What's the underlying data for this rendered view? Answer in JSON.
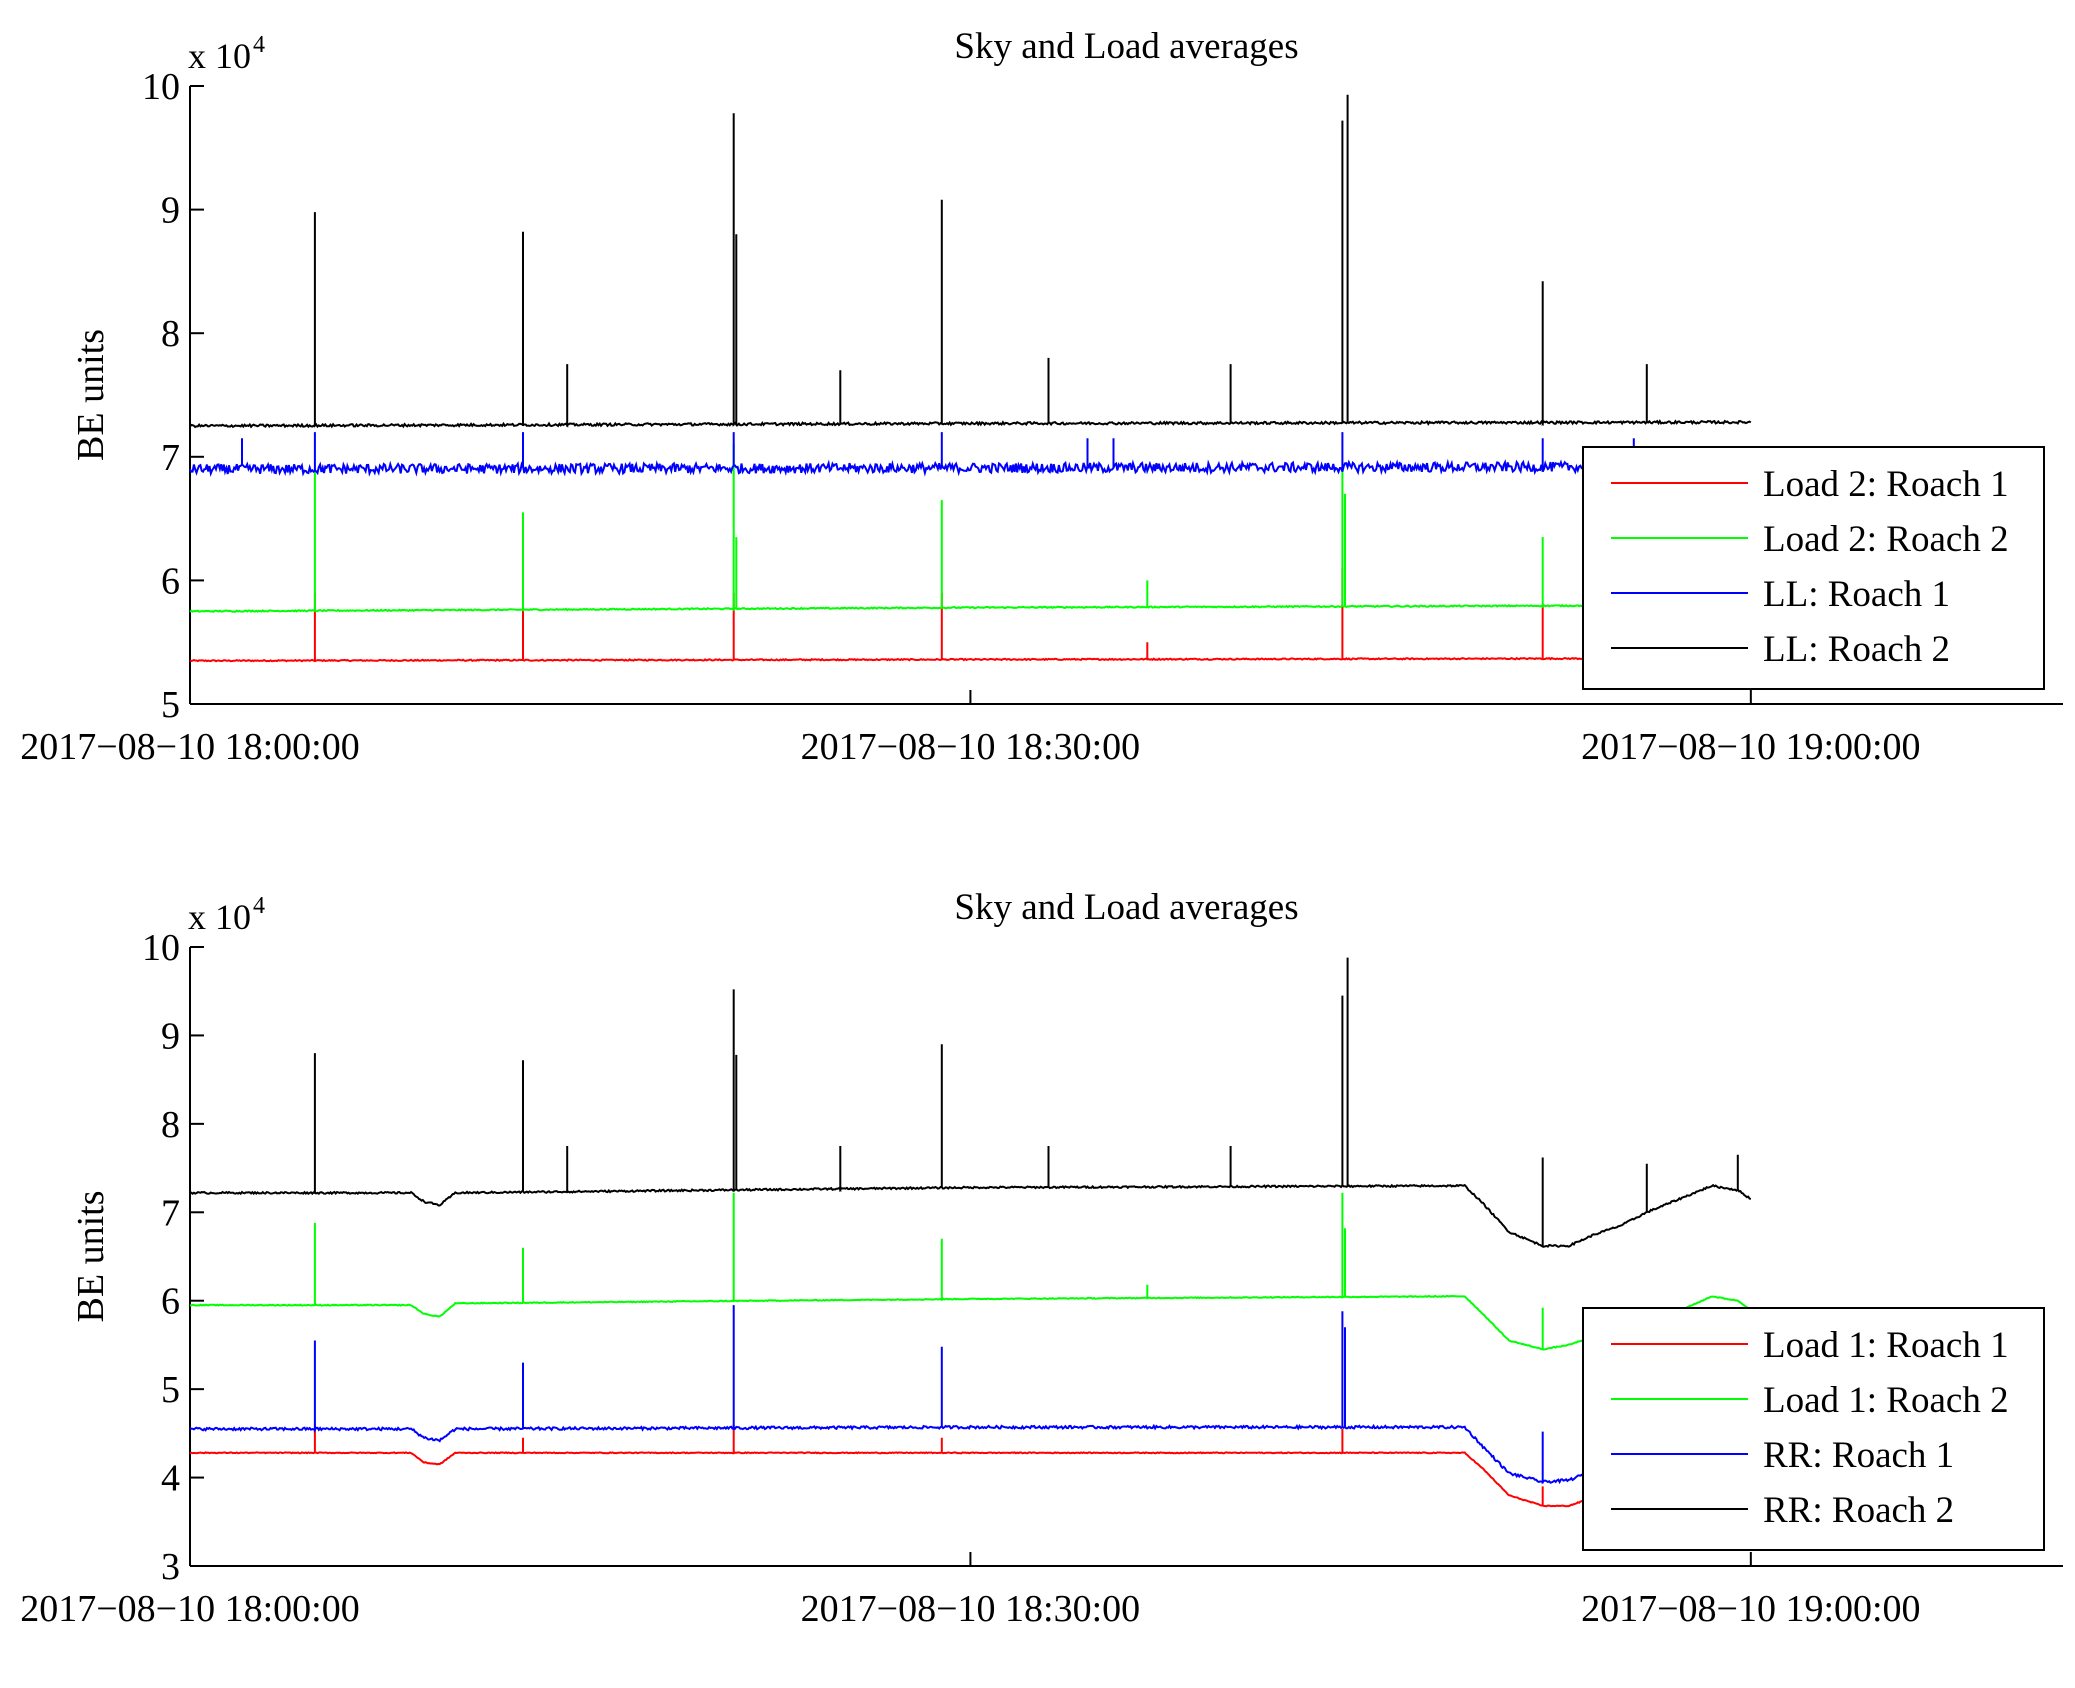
{
  "chart_data": [
    {
      "type": "line",
      "title": "Sky and Load averages",
      "ylabel": "BE units",
      "y_multiplier": "x 10",
      "y_multiplier_exponent": "4",
      "ylim": [
        5,
        10
      ],
      "yticks": [
        5,
        6,
        7,
        8,
        9,
        10
      ],
      "ytick_labels": [
        "5",
        "6",
        "7",
        "8",
        "9",
        "10"
      ],
      "xlim": [
        "2017-08-10 18:00:00",
        "2017-08-10 19:12:00"
      ],
      "xticks": [
        "2017-08-10 18:00:00",
        "2017-08-10 18:30:00",
        "2017-08-10 19:00:00"
      ],
      "xtick_labels": [
        "2017−08−10 18:00:00",
        "2017−08−10 18:30:00",
        "2017−08−10 19:00:00"
      ],
      "legend_position": "lower-right",
      "series": [
        {
          "name": "Load 2: Roach 1",
          "color": "#ff0000",
          "start": "2017-08-10 18:00:00",
          "end": "2017-08-10 19:00:00",
          "baseline": [
            [
              0,
              5.35
            ],
            [
              30,
              5.36
            ],
            [
              60,
              5.37
            ]
          ],
          "noise": 0.01,
          "spikes": [
            [
              4.8,
              5.9
            ],
            [
              12.8,
              5.9
            ],
            [
              20.9,
              5.9
            ],
            [
              28.9,
              5.9
            ],
            [
              36.8,
              5.5
            ],
            [
              44.3,
              6.1
            ],
            [
              52.0,
              5.8
            ]
          ]
        },
        {
          "name": "Load 2: Roach 2",
          "color": "#00ff00",
          "start": "2017-08-10 18:00:00",
          "end": "2017-08-10 19:00:00",
          "baseline": [
            [
              0,
              5.75
            ],
            [
              30,
              5.78
            ],
            [
              60,
              5.8
            ]
          ],
          "noise": 0.01,
          "spikes": [
            [
              4.8,
              6.9
            ],
            [
              12.8,
              6.55
            ],
            [
              20.9,
              7.1
            ],
            [
              21.0,
              6.35
            ],
            [
              28.9,
              6.65
            ],
            [
              36.8,
              6.0
            ],
            [
              44.3,
              6.9
            ],
            [
              44.4,
              6.7
            ],
            [
              52.0,
              6.35
            ]
          ]
        },
        {
          "name": "LL: Roach 1",
          "color": "#0000ff",
          "start": "2017-08-10 18:00:00",
          "end": "2017-08-10 19:00:00",
          "baseline": [
            [
              0,
              6.9
            ],
            [
              30,
              6.91
            ],
            [
              60,
              6.92
            ]
          ],
          "noise": 0.08,
          "spikes": [
            [
              2.0,
              7.15
            ],
            [
              4.8,
              7.2
            ],
            [
              12.8,
              7.2
            ],
            [
              20.9,
              7.2
            ],
            [
              28.9,
              7.2
            ],
            [
              34.5,
              7.15
            ],
            [
              35.5,
              7.15
            ],
            [
              44.3,
              7.2
            ],
            [
              52.0,
              7.15
            ],
            [
              55.5,
              7.15
            ],
            [
              58.0,
              7.05
            ]
          ]
        },
        {
          "name": "LL: Roach 2",
          "color": "#000000",
          "start": "2017-08-10 18:00:00",
          "end": "2017-08-10 19:00:00",
          "baseline": [
            [
              0,
              7.25
            ],
            [
              30,
              7.27
            ],
            [
              60,
              7.28
            ]
          ],
          "noise": 0.02,
          "spikes": [
            [
              4.8,
              8.98
            ],
            [
              12.8,
              8.82
            ],
            [
              20.9,
              9.78
            ],
            [
              21.0,
              8.8
            ],
            [
              28.9,
              9.08
            ],
            [
              44.3,
              9.72
            ],
            [
              44.5,
              9.93
            ],
            [
              52.0,
              8.42
            ],
            [
              14.5,
              7.75
            ],
            [
              25.0,
              7.7
            ],
            [
              33.0,
              7.8
            ],
            [
              40.0,
              7.75
            ],
            [
              56.0,
              7.75
            ]
          ]
        }
      ]
    },
    {
      "type": "line",
      "title": "Sky and Load averages",
      "ylabel": "BE units",
      "y_multiplier": "x 10",
      "y_multiplier_exponent": "4",
      "ylim": [
        3,
        10
      ],
      "yticks": [
        3,
        4,
        5,
        6,
        7,
        8,
        9,
        10
      ],
      "ytick_labels": [
        "3",
        "4",
        "5",
        "6",
        "7",
        "8",
        "9",
        "10"
      ],
      "xlim": [
        "2017-08-10 18:00:00",
        "2017-08-10 19:12:00"
      ],
      "xticks": [
        "2017-08-10 18:00:00",
        "2017-08-10 18:30:00",
        "2017-08-10 19:00:00"
      ],
      "xtick_labels": [
        "2017−08−10 18:00:00",
        "2017−08−10 18:30:00",
        "2017−08−10 19:00:00"
      ],
      "legend_position": "lower-right",
      "series": [
        {
          "name": "Load 1: Roach 1",
          "color": "#ff0000",
          "start": "2017-08-10 18:00:00",
          "end": "2017-08-10 19:00:00",
          "baseline": [
            [
              0,
              4.28
            ],
            [
              8.5,
              4.28
            ],
            [
              9.0,
              4.17
            ],
            [
              9.6,
              4.15
            ],
            [
              10.2,
              4.28
            ],
            [
              30,
              4.28
            ],
            [
              49,
              4.28
            ],
            [
              49.7,
              4.1
            ],
            [
              50.7,
              3.8
            ],
            [
              52.0,
              3.68
            ],
            [
              53.0,
              3.68
            ],
            [
              54.0,
              3.78
            ],
            [
              55.0,
              3.8
            ]
          ],
          "noise": 0.01,
          "spikes": [
            [
              4.8,
              4.6
            ],
            [
              12.8,
              4.45
            ],
            [
              20.9,
              4.6
            ],
            [
              28.9,
              4.45
            ],
            [
              44.3,
              4.55
            ],
            [
              52.0,
              3.9
            ]
          ]
        },
        {
          "name": "Load 1: Roach 2",
          "color": "#00ff00",
          "start": "2017-08-10 18:00:00",
          "end": "2017-08-10 19:00:00",
          "baseline": [
            [
              0,
              5.95
            ],
            [
              8.5,
              5.95
            ],
            [
              9.0,
              5.85
            ],
            [
              9.6,
              5.82
            ],
            [
              10.2,
              5.97
            ],
            [
              30,
              6.02
            ],
            [
              49,
              6.05
            ],
            [
              49.7,
              5.85
            ],
            [
              50.7,
              5.55
            ],
            [
              52.0,
              5.45
            ],
            [
              53.0,
              5.5
            ],
            [
              54.0,
              5.6
            ],
            [
              55.5,
              5.75
            ],
            [
              57.0,
              5.85
            ],
            [
              58.5,
              6.05
            ],
            [
              59.5,
              6.0
            ],
            [
              60,
              5.9
            ]
          ],
          "noise": 0.01,
          "spikes": [
            [
              4.8,
              6.88
            ],
            [
              12.8,
              6.6
            ],
            [
              20.9,
              7.22
            ],
            [
              28.9,
              6.7
            ],
            [
              36.8,
              6.18
            ],
            [
              44.3,
              7.22
            ],
            [
              44.4,
              6.82
            ],
            [
              52.0,
              5.92
            ]
          ]
        },
        {
          "name": "RR: Roach 1",
          "color": "#0000ff",
          "start": "2017-08-10 18:00:00",
          "end": "2017-08-10 19:00:00",
          "baseline": [
            [
              0,
              4.55
            ],
            [
              8.5,
              4.55
            ],
            [
              9.0,
              4.45
            ],
            [
              9.6,
              4.42
            ],
            [
              10.2,
              4.55
            ],
            [
              30,
              4.57
            ],
            [
              49,
              4.57
            ],
            [
              49.7,
              4.35
            ],
            [
              50.7,
              4.05
            ],
            [
              52.0,
              3.95
            ],
            [
              53.0,
              3.97
            ],
            [
              54.0,
              4.08
            ],
            [
              55.0,
              4.05
            ]
          ],
          "noise": 0.03,
          "spikes": [
            [
              4.8,
              5.55
            ],
            [
              12.8,
              5.3
            ],
            [
              20.9,
              5.95
            ],
            [
              28.9,
              5.48
            ],
            [
              44.3,
              5.88
            ],
            [
              44.4,
              5.7
            ],
            [
              52.0,
              4.52
            ]
          ]
        },
        {
          "name": "RR: Roach 2",
          "color": "#000000",
          "start": "2017-08-10 18:00:00",
          "end": "2017-08-10 19:00:00",
          "baseline": [
            [
              0,
              7.22
            ],
            [
              8.5,
              7.22
            ],
            [
              9.0,
              7.12
            ],
            [
              9.6,
              7.08
            ],
            [
              10.2,
              7.22
            ],
            [
              30,
              7.28
            ],
            [
              49,
              7.3
            ],
            [
              49.7,
              7.1
            ],
            [
              50.7,
              6.78
            ],
            [
              52.0,
              6.62
            ],
            [
              53.0,
              6.62
            ],
            [
              54.0,
              6.75
            ],
            [
              55.0,
              6.85
            ],
            [
              56.0,
              7.0
            ],
            [
              57.0,
              7.12
            ],
            [
              58.5,
              7.3
            ],
            [
              59.5,
              7.25
            ],
            [
              60,
              7.15
            ]
          ],
          "noise": 0.02,
          "spikes": [
            [
              4.8,
              8.8
            ],
            [
              12.8,
              8.72
            ],
            [
              20.9,
              9.52
            ],
            [
              21.0,
              8.78
            ],
            [
              28.9,
              8.9
            ],
            [
              44.3,
              9.45
            ],
            [
              44.5,
              9.88
            ],
            [
              52.0,
              7.62
            ],
            [
              14.5,
              7.75
            ],
            [
              25.0,
              7.75
            ],
            [
              33.0,
              7.75
            ],
            [
              40.0,
              7.75
            ],
            [
              56.0,
              7.55
            ],
            [
              59.5,
              7.65
            ]
          ]
        }
      ]
    }
  ]
}
